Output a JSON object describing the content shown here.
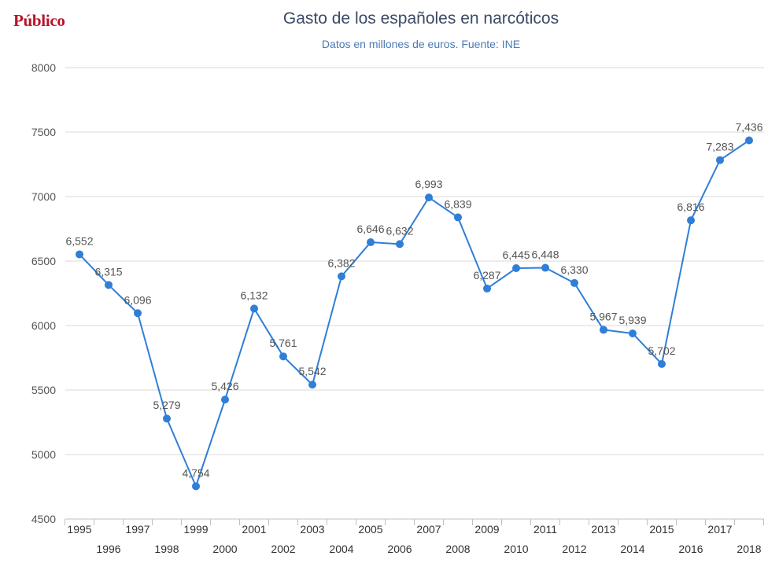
{
  "header": {
    "brand": "Público",
    "title": "Gasto de los españoles en narcóticos",
    "subtitle": "Datos en millones de euros. Fuente: INE"
  },
  "chart_data": {
    "type": "line",
    "title": "Gasto de los españoles en narcóticos",
    "subtitle": "Datos en millones de euros. Fuente: INE",
    "xlabel": "",
    "ylabel": "",
    "ylim": [
      4500,
      8000
    ],
    "yticks": [
      4500,
      5000,
      5500,
      6000,
      6500,
      7000,
      7500,
      8000
    ],
    "grid": true,
    "categories": [
      "1995",
      "1996",
      "1997",
      "1998",
      "1999",
      "2000",
      "2001",
      "2002",
      "2003",
      "2004",
      "2005",
      "2006",
      "2007",
      "2008",
      "2009",
      "2010",
      "2011",
      "2012",
      "2013",
      "2014",
      "2015",
      "2016",
      "2017",
      "2018"
    ],
    "series": [
      {
        "name": "",
        "color": "#2f7ed8",
        "values": [
          6552,
          6315,
          6096,
          5279,
          4754,
          5426,
          6132,
          5761,
          5542,
          6382,
          6646,
          6632,
          6993,
          6839,
          6287,
          6445,
          6448,
          6330,
          5967,
          5939,
          5702,
          6816,
          7283,
          7436
        ],
        "labels": [
          "6,552",
          "6,315",
          "6,096",
          "5,279",
          "4,754",
          "5,426",
          "6,132",
          "5,761",
          "5,542",
          "6,382",
          "6,646",
          "6,632",
          "6,993",
          "6,839",
          "6,287",
          "6,445",
          "6,448",
          "6,330",
          "5,967",
          "5,939",
          "5,702",
          "6,816",
          "7,283",
          "7,436"
        ]
      }
    ]
  }
}
